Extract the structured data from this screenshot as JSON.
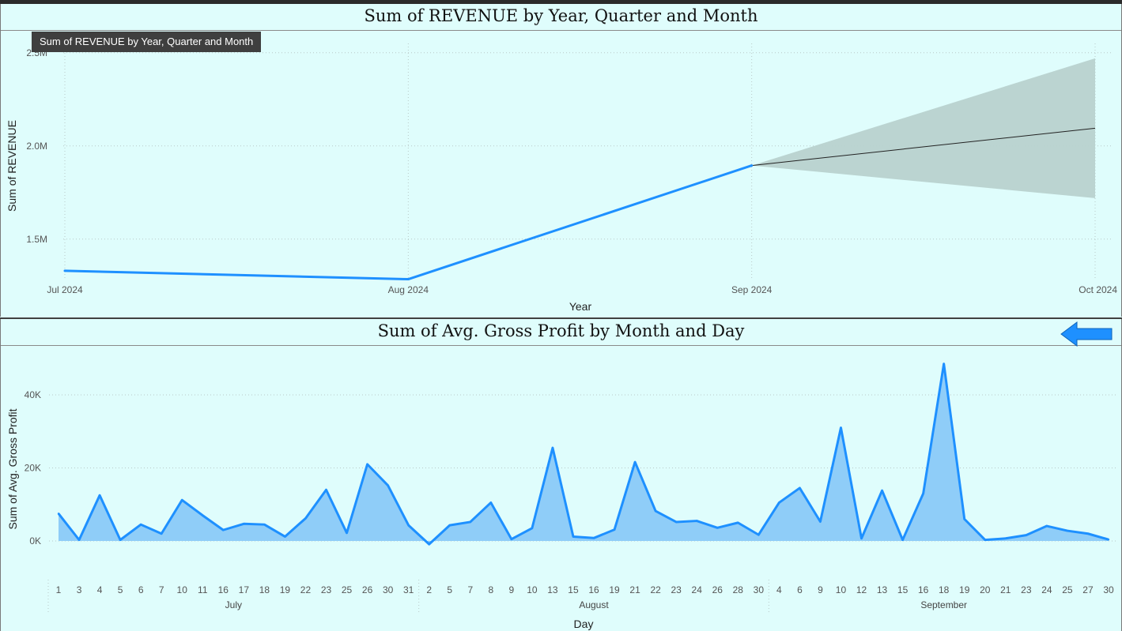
{
  "charts": {
    "revenue": {
      "title": "Sum of REVENUE by Year, Quarter and Month",
      "tooltip": "Sum of REVENUE by Year, Quarter and Month",
      "xlabel": "Year",
      "ylabel": "Sum of REVENUE",
      "y_ticks": [
        {
          "value": 1500000,
          "label": "1.5M"
        },
        {
          "value": 2000000,
          "label": "2.0M"
        },
        {
          "value": 2500000,
          "label": "2.5M"
        }
      ],
      "line_color": "#1e90ff",
      "forecast_band_color": "#b8d2cf",
      "forecast_line_color": "#222222"
    },
    "gross_profit": {
      "title": "Sum of Avg. Gross Profit by Month and Day",
      "xlabel": "Day",
      "ylabel": "Sum of Avg. Gross Profit",
      "y_ticks": [
        {
          "value": 0,
          "label": "0K"
        },
        {
          "value": 20000,
          "label": "20K"
        },
        {
          "value": 40000,
          "label": "40K"
        }
      ],
      "line_color": "#1e90ff",
      "fill_color": "#8fcdf8",
      "back_icon": "left-arrow-icon"
    }
  },
  "chart_data": [
    {
      "type": "line",
      "title": "Sum of REVENUE by Year, Quarter and Month",
      "xlabel": "Year",
      "ylabel": "Sum of REVENUE",
      "categories": [
        "Jul 2024",
        "Aug 2024",
        "Sep 2024",
        "Oct 2024"
      ],
      "values": [
        1330000,
        1285000,
        1895000,
        null
      ],
      "ylim": [
        1300000,
        2500000
      ],
      "forecast": {
        "x": [
          "Sep 2024",
          "Oct 2024"
        ],
        "values": [
          1895000,
          2095000
        ],
        "upper": [
          1895000,
          2470000
        ],
        "lower": [
          1895000,
          1720000
        ]
      },
      "grid": true,
      "legend": "none"
    },
    {
      "type": "area",
      "title": "Sum of Avg. Gross Profit by Month and Day",
      "xlabel": "Day",
      "ylabel": "Sum of Avg. Gross Profit",
      "ylim": [
        -2000,
        50000
      ],
      "grid": true,
      "legend": "none",
      "groups": [
        {
          "month": "July",
          "days": [
            "1",
            "3",
            "4",
            "5",
            "6",
            "7",
            "10",
            "11",
            "16",
            "17",
            "18",
            "19",
            "22",
            "23",
            "25",
            "26",
            "30",
            "31"
          ],
          "values": [
            7500,
            300,
            12500,
            300,
            4500,
            2000,
            11200,
            7000,
            3000,
            4700,
            4500,
            1200,
            6200,
            14000,
            2200,
            21000,
            15200,
            4300
          ]
        },
        {
          "month": "August",
          "days": [
            "2",
            "5",
            "7",
            "8",
            "9",
            "10",
            "13",
            "15",
            "16",
            "19",
            "21",
            "22",
            "23",
            "24",
            "26",
            "28",
            "30"
          ],
          "values": [
            -900,
            4300,
            5200,
            10500,
            500,
            3500,
            25500,
            1200,
            800,
            3100,
            21600,
            8200,
            5200,
            5500,
            3600,
            5000,
            1700
          ]
        },
        {
          "month": "September",
          "days": [
            "4",
            "6",
            "9",
            "10",
            "12",
            "13",
            "15",
            "16",
            "18",
            "19",
            "20",
            "21",
            "23",
            "24",
            "25",
            "27",
            "30"
          ],
          "values": [
            10500,
            14500,
            5300,
            31000,
            700,
            13800,
            300,
            13000,
            48500,
            6000,
            300,
            700,
            1600,
            4100,
            2800,
            2000,
            400
          ]
        }
      ]
    }
  ]
}
